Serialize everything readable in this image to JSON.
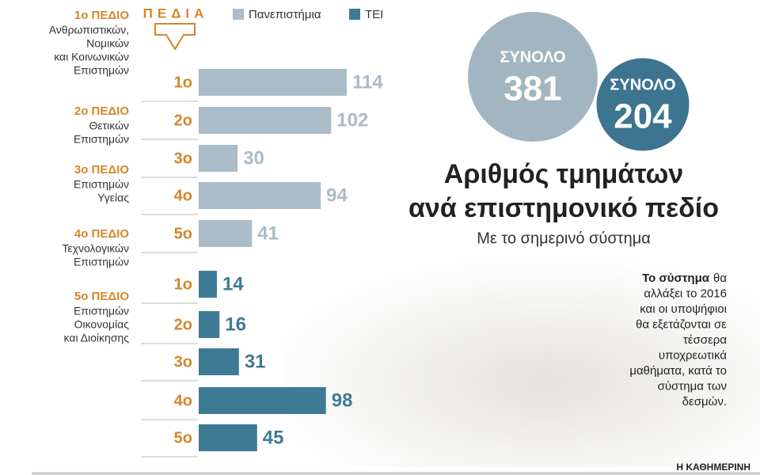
{
  "chart_data": {
    "type": "bar",
    "orientation": "horizontal",
    "title": [
      "Αριθμός τμημάτων",
      "ανά επιστημονικό πεδίο"
    ],
    "subtitle": "Με το σημερινό σύστημα",
    "header": "ΠΕΔΙΑ",
    "categories": [
      "1ο",
      "2ο",
      "3ο",
      "4ο",
      "5ο"
    ],
    "series": [
      {
        "name": "Πανεπιστήμια",
        "color": "#a9bcc7",
        "values": [
          114,
          102,
          30,
          94,
          41
        ]
      },
      {
        "name": "ΤΕΙ",
        "color": "#3f7a94",
        "values": [
          14,
          16,
          31,
          98,
          45
        ]
      }
    ],
    "totals": [
      {
        "label": "ΣΥΝΟΛΟ",
        "value": 381,
        "color": "#a3b5c0"
      },
      {
        "label": "ΣΥΝΟΛΟ",
        "value": 204,
        "color": "#3d7490"
      }
    ],
    "fields": [
      {
        "heading": "1ο ΠΕΔΙΟ",
        "lines": [
          "Ανθρωπιστικών,",
          "Νομικών",
          "και Κοινωνικών",
          "Επιστημών"
        ]
      },
      {
        "heading": "2ο ΠΕΔΙΟ",
        "lines": [
          "Θετικών",
          "Επιστημών"
        ]
      },
      {
        "heading": "3ο ΠΕΔΙΟ",
        "lines": [
          "Επιστημών",
          "Υγείας"
        ]
      },
      {
        "heading": "4ο ΠΕΔΙΟ",
        "lines": [
          "Τεχνολογικών",
          "Επιστημών"
        ]
      },
      {
        "heading": "5ο ΠΕΔΙΟ",
        "lines": [
          "Επιστημών",
          "Οικονομίας",
          "και Διοίκησης"
        ]
      }
    ],
    "note": {
      "lead": "Το σύστημα",
      "lines": [
        "θα",
        "αλλάξει το 2016",
        "και οι υποψήφιοι",
        "θα εξετάζονται σε",
        "τέσσερα",
        "υποχρεωτικά",
        "μαθήματα, κατά το",
        "σύστημα των",
        "δεσμών."
      ]
    },
    "source": "Η ΚΑΘΗΜΕΡΙΝΗ"
  }
}
